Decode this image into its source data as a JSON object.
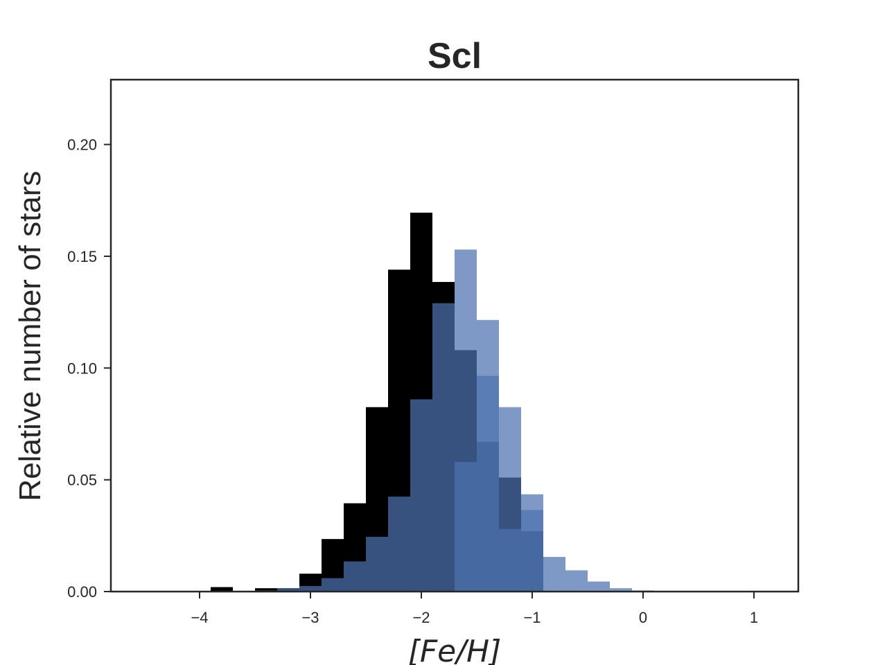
{
  "chart_data": {
    "type": "bar",
    "title": "Scl",
    "xlabel": "[Fe/H]",
    "ylabel": "Relative number of stars",
    "xlim": [
      -4.8,
      1.4
    ],
    "ylim": [
      0,
      0.229
    ],
    "xticks": [
      -4,
      -3,
      -2,
      -1,
      0,
      1
    ],
    "xtick_labels": [
      "−4",
      "−3",
      "−2",
      "−1",
      "0",
      "1"
    ],
    "yticks": [
      0.0,
      0.05,
      0.1,
      0.15,
      0.2
    ],
    "ytick_labels": [
      "0.00",
      "0.05",
      "0.10",
      "0.15",
      "0.20"
    ],
    "grid": false,
    "bin_edges": [
      -4.1,
      -3.9,
      -3.7,
      -3.5,
      -3.3,
      -3.1,
      -2.9,
      -2.7,
      -2.5,
      -2.3,
      -2.1,
      -1.9,
      -1.7,
      -1.5,
      -1.3,
      -1.1,
      -0.9,
      -0.7,
      -0.5,
      -0.3,
      -0.1,
      0.1,
      0.3
    ],
    "series": [
      {
        "color": "#000000",
        "values": [
          0,
          0.002,
          0,
          0.0015,
          0.0015,
          0.008,
          0.0235,
          0.0395,
          0.0825,
          0.144,
          0.1695,
          0.1385,
          0.108,
          0.067,
          0.051,
          0.027,
          0,
          0,
          0,
          0,
          0,
          0
        ]
      },
      {
        "color": "#4c72b0",
        "opacity": 0.72,
        "values": [
          0,
          0,
          0,
          0.0005,
          0.0015,
          0.0025,
          0.006,
          0.0135,
          0.0245,
          0.0425,
          0.086,
          0.129,
          0.153,
          0.1215,
          0.0825,
          0.0365,
          0.0155,
          0.0095,
          0.0045,
          0.0015,
          0.0005,
          0.0002
        ]
      },
      {
        "color": "#4c72b0",
        "opacity": 0.72,
        "values": [
          0,
          0,
          0,
          0,
          0,
          0,
          0,
          0,
          0,
          0,
          0,
          0,
          0.058,
          0.0965,
          0.028,
          0.0435,
          0,
          0,
          0,
          0,
          0,
          0
        ]
      }
    ]
  }
}
